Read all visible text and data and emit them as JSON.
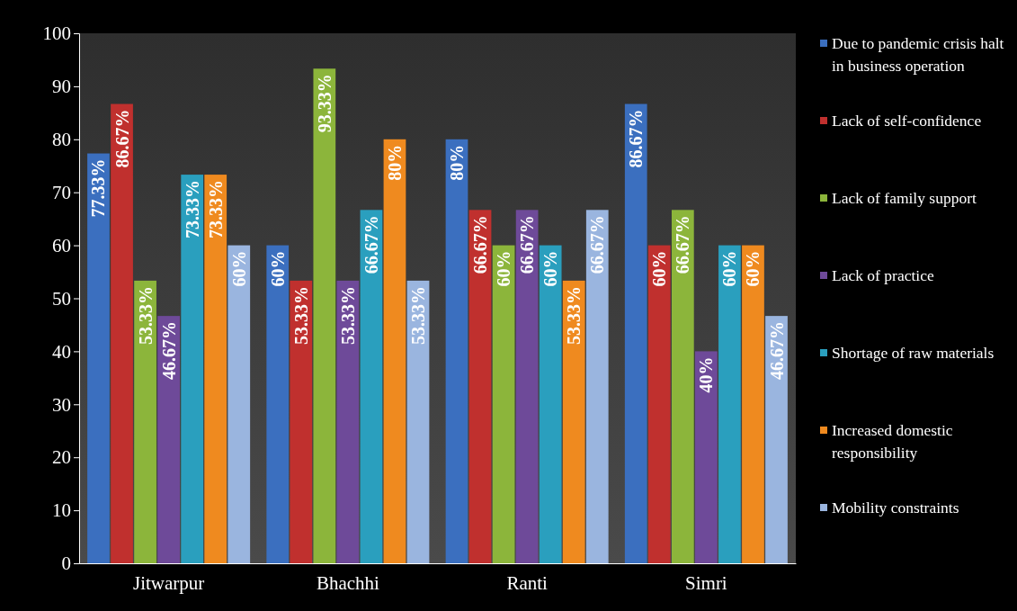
{
  "chart_data": {
    "type": "bar",
    "categories": [
      "Jitwarpur",
      "Bhachhi",
      "Ranti",
      "Simri"
    ],
    "ylim": [
      0,
      100
    ],
    "yticks": [
      0,
      10,
      20,
      30,
      40,
      50,
      60,
      70,
      80,
      90,
      100
    ],
    "grid": false,
    "legend": "right",
    "series": [
      {
        "name": "Due to pandemic crisis halt in business operation",
        "color": "#3b6fbf",
        "values": [
          77.33,
          60,
          80,
          86.67
        ],
        "value_labels": [
          "77.33%",
          "60%",
          "80%",
          "86.67%"
        ]
      },
      {
        "name": "Lack of self-confidence",
        "color": "#c0302e",
        "values": [
          86.67,
          53.33,
          66.67,
          60
        ],
        "value_labels": [
          "86.67%",
          "53.33%",
          "66.67%",
          "60%"
        ]
      },
      {
        "name": "Lack of family support",
        "color": "#8cb53b",
        "values": [
          53.33,
          93.33,
          60,
          66.67
        ],
        "value_labels": [
          "53.33%",
          "93.33%",
          "60%",
          "66.67%"
        ]
      },
      {
        "name": "Lack of practice",
        "color": "#6e4a99",
        "values": [
          46.67,
          53.33,
          66.67,
          40
        ],
        "value_labels": [
          "46.67%",
          "53.33%",
          "66.67%",
          "40%"
        ]
      },
      {
        "name": "Shortage of raw materials",
        "color": "#2a9fbe",
        "values": [
          73.33,
          66.67,
          60,
          60
        ],
        "value_labels": [
          "73.33%",
          "66.67%",
          "60%",
          "60%"
        ]
      },
      {
        "name": "Increased domestic responsibility",
        "color": "#ef8a1f",
        "values": [
          73.33,
          80,
          53.33,
          60
        ],
        "value_labels": [
          "73.33%",
          "80%",
          "53.33%",
          "60%"
        ]
      },
      {
        "name": "Mobility constraints",
        "color": "#9ab5df",
        "values": [
          60,
          53.33,
          66.67,
          46.67
        ],
        "value_labels": [
          "60%",
          "53.33%",
          "66.67%",
          "46.67%"
        ]
      }
    ]
  }
}
